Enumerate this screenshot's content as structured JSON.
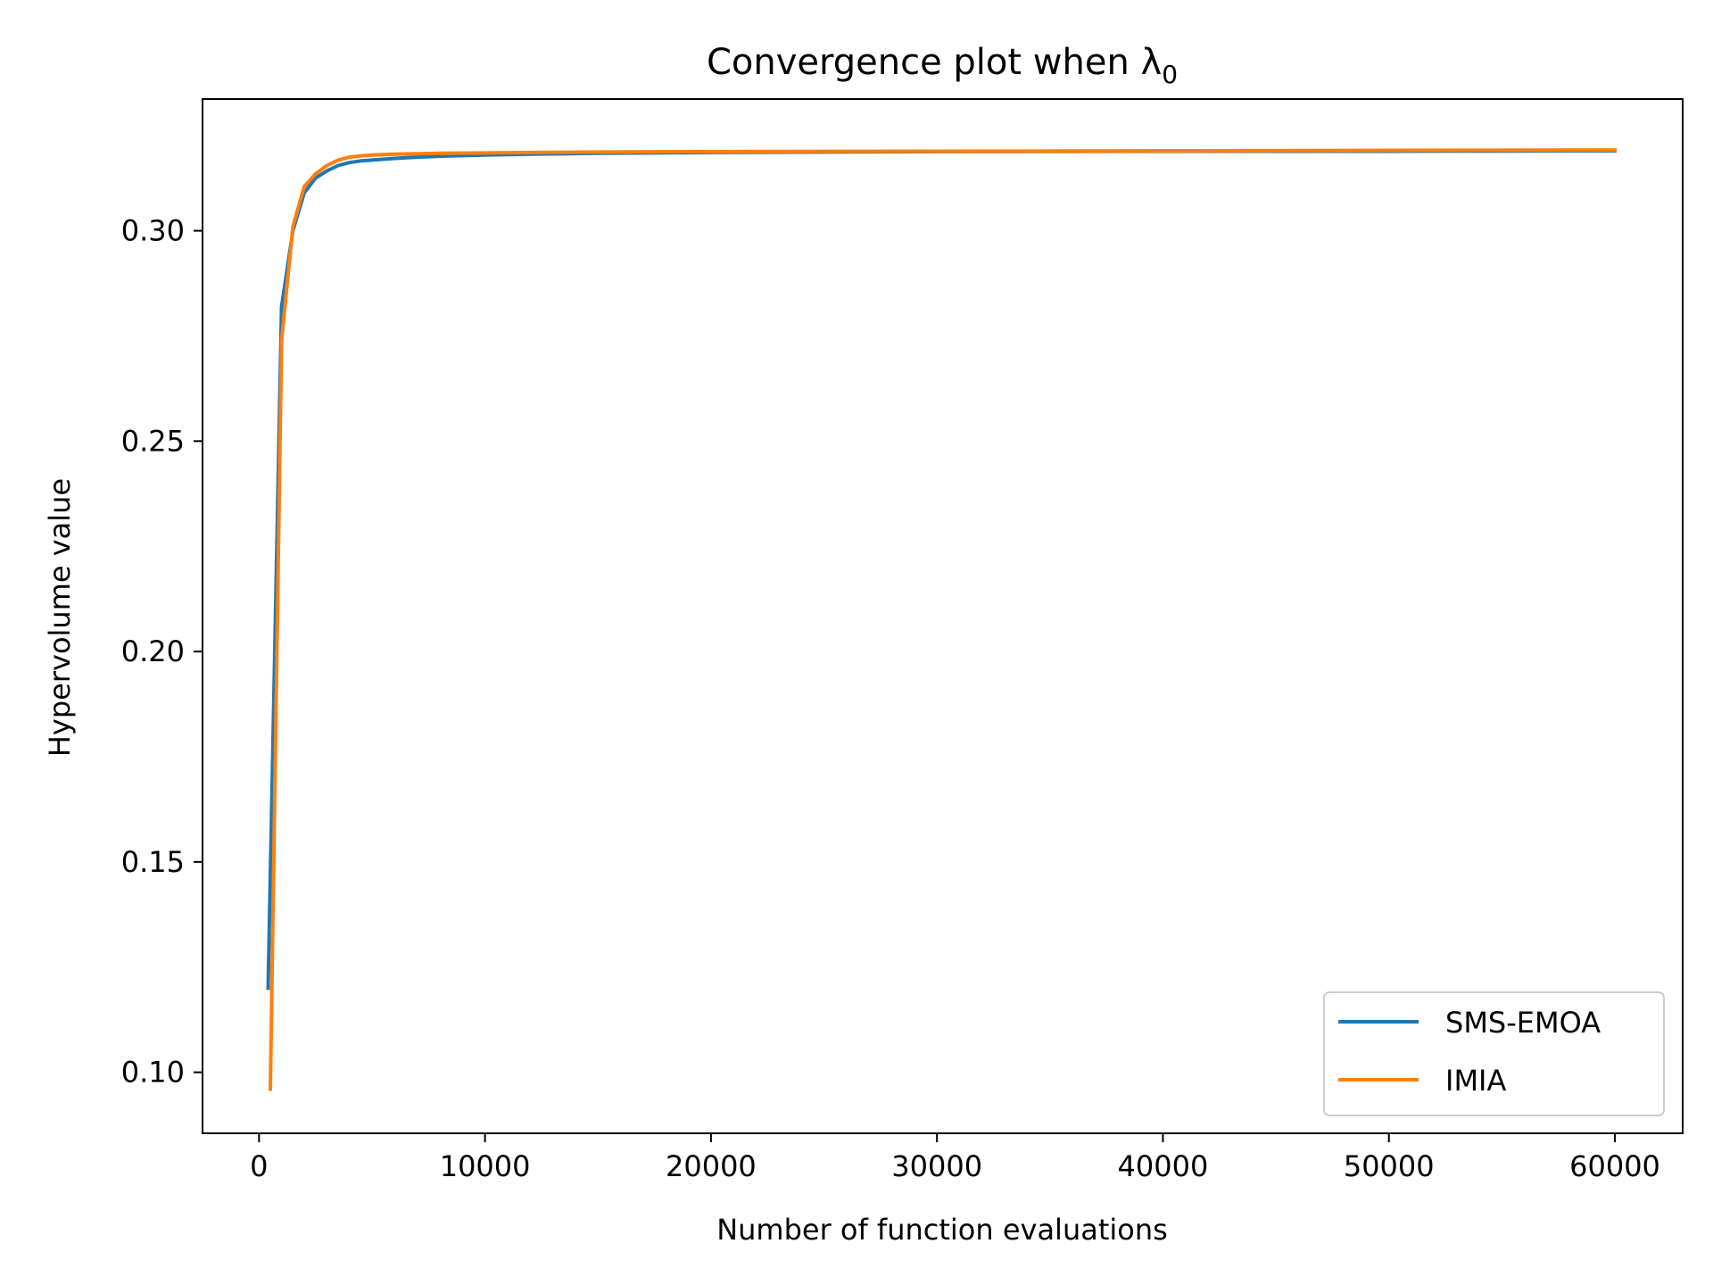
{
  "chart_data": {
    "type": "line",
    "title": "Convergence plot when λ",
    "title_subscript": "0",
    "xlabel": "Number of function evaluations",
    "ylabel": "Hypervolume value",
    "xlim": [
      -2500,
      63000
    ],
    "ylim": [
      0.0855,
      0.3313
    ],
    "xticks": [
      0,
      10000,
      20000,
      30000,
      40000,
      50000,
      60000
    ],
    "xtick_labels": [
      "0",
      "10000",
      "20000",
      "30000",
      "40000",
      "50000",
      "60000"
    ],
    "yticks": [
      0.1,
      0.15,
      0.2,
      0.25,
      0.3
    ],
    "ytick_labels": [
      "0.10",
      "0.15",
      "0.20",
      "0.25",
      "0.30"
    ],
    "grid": false,
    "legend_position": "lower-right",
    "series": [
      {
        "name": "SMS-EMOA",
        "color": "#1f77b4",
        "x": [
          400,
          1000,
          1500,
          2000,
          2500,
          3000,
          3500,
          4000,
          4500,
          5000,
          6000,
          7000,
          8000,
          10000,
          12000,
          15000,
          20000,
          30000,
          40000,
          50000,
          60000
        ],
        "y": [
          0.12,
          0.282,
          0.3,
          0.309,
          0.3125,
          0.3142,
          0.3155,
          0.3162,
          0.3166,
          0.3168,
          0.3172,
          0.3175,
          0.3177,
          0.318,
          0.3182,
          0.3184,
          0.3186,
          0.3188,
          0.3189,
          0.3189,
          0.319
        ]
      },
      {
        "name": "IMIA",
        "color": "#ff7f0e",
        "x": [
          500,
          1000,
          1500,
          2000,
          2500,
          3000,
          3500,
          4000,
          4500,
          5000,
          6000,
          7000,
          8000,
          10000,
          12000,
          15000,
          20000,
          30000,
          40000,
          50000,
          60000
        ],
        "y": [
          0.096,
          0.274,
          0.301,
          0.3105,
          0.3135,
          0.3155,
          0.3168,
          0.3175,
          0.3178,
          0.318,
          0.3182,
          0.3183,
          0.3184,
          0.3185,
          0.3186,
          0.3187,
          0.3188,
          0.3189,
          0.319,
          0.3191,
          0.3192
        ]
      }
    ]
  }
}
